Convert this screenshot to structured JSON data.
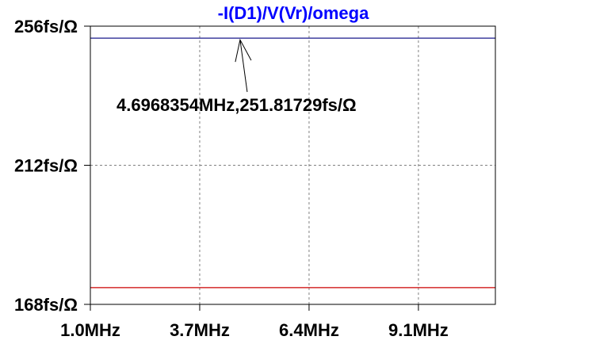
{
  "chart_data": {
    "type": "line",
    "title": "-I(D1)/V(Vr)/omega",
    "x_ticks": [
      1.0,
      3.7,
      6.4,
      9.1
    ],
    "x_tick_labels": [
      "1.0MHz",
      "3.7MHz",
      "6.4MHz",
      "9.1MHz"
    ],
    "xlim": [
      1.0,
      11.0
    ],
    "y_ticks": [
      168,
      212,
      256
    ],
    "y_tick_labels": [
      "168fs/Ω",
      "212fs/Ω",
      "256fs/Ω"
    ],
    "ylim": [
      168,
      256
    ],
    "grid": true,
    "series": [
      {
        "values_x": [
          1.0,
          11.0
        ],
        "values_y": [
          252.2,
          252.2
        ],
        "color": "#1a1a8c"
      },
      {
        "values_x": [
          1.0,
          11.0
        ],
        "values_y": [
          173.3,
          173.3
        ],
        "color": "#cc0000"
      }
    ],
    "annotation": {
      "text": "4.6968354MHz,251.81729fs/Ω",
      "x": 4.6968354,
      "y": 251.81729
    },
    "colors": {
      "title": "#0000ff",
      "frame": "#000000",
      "grid": "#808080"
    }
  }
}
